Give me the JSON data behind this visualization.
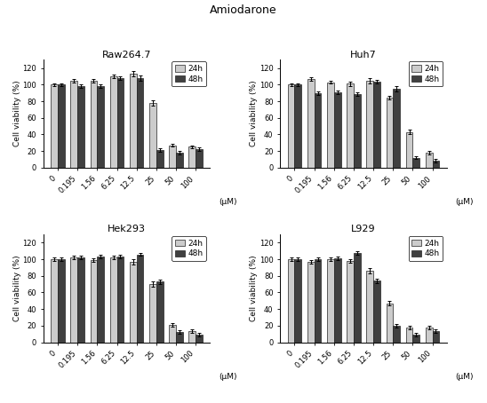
{
  "title": "Amiodarone",
  "x_labels": [
    "0",
    "0.195",
    "1.56",
    "6.25",
    "12.5",
    "25",
    "50",
    "100"
  ],
  "x_unit": "(μM)",
  "ylabel": "Cell viability (%)",
  "ylim": [
    0,
    130
  ],
  "yticks": [
    0,
    20,
    40,
    60,
    80,
    100,
    120
  ],
  "subplots": [
    {
      "title": "Raw264.7",
      "data_24h": [
        100,
        105,
        105,
        110,
        113,
        78,
        27,
        25
      ],
      "data_48h": [
        100,
        98,
        98,
        108,
        108,
        21,
        18,
        22
      ],
      "err_24h": [
        2,
        2,
        2,
        2,
        3,
        3,
        2,
        2
      ],
      "err_48h": [
        2,
        2,
        2,
        2,
        3,
        2,
        2,
        2
      ]
    },
    {
      "title": "Huh7",
      "data_24h": [
        100,
        107,
        103,
        101,
        105,
        84,
        43,
        18
      ],
      "data_48h": [
        100,
        90,
        91,
        89,
        104,
        95,
        12,
        8
      ],
      "err_24h": [
        2,
        2,
        2,
        3,
        3,
        2,
        3,
        2
      ],
      "err_48h": [
        2,
        2,
        2,
        2,
        2,
        3,
        2,
        2
      ]
    },
    {
      "title": "Hek293",
      "data_24h": [
        100,
        102,
        99,
        102,
        97,
        70,
        21,
        13
      ],
      "data_48h": [
        100,
        102,
        103,
        103,
        106,
        73,
        12,
        9
      ],
      "err_24h": [
        2,
        2,
        2,
        2,
        3,
        3,
        2,
        2
      ],
      "err_48h": [
        2,
        2,
        2,
        2,
        2,
        3,
        2,
        2
      ]
    },
    {
      "title": "L929",
      "data_24h": [
        100,
        97,
        100,
        98,
        86,
        47,
        18,
        18
      ],
      "data_48h": [
        100,
        100,
        101,
        108,
        74,
        20,
        9,
        13
      ],
      "err_24h": [
        2,
        2,
        2,
        2,
        3,
        3,
        2,
        2
      ],
      "err_48h": [
        2,
        2,
        2,
        2,
        3,
        2,
        2,
        2
      ]
    }
  ],
  "color_24h": "#cccccc",
  "color_48h": "#404040",
  "bar_width": 0.35,
  "bar_edge_color": "#222222",
  "bar_edge_width": 0.5,
  "title_fontsize": 8,
  "axis_fontsize": 6.5,
  "tick_fontsize": 6,
  "legend_fontsize": 6.5,
  "suptitle_fontsize": 9,
  "capsize": 1.5,
  "error_linewidth": 0.7
}
